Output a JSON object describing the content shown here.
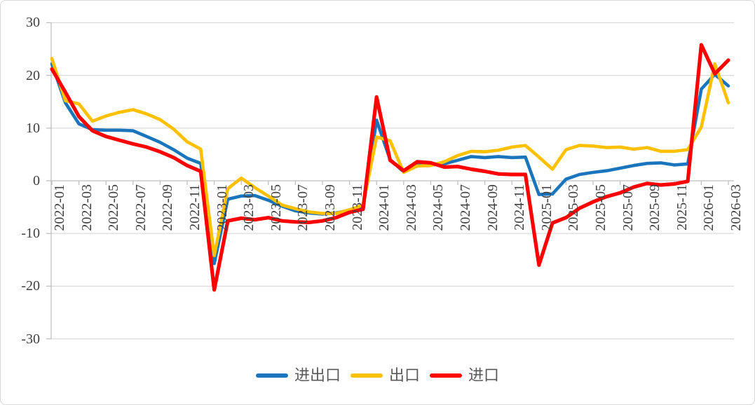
{
  "chart_data": {
    "type": "line",
    "title": "",
    "xlabel": "",
    "ylabel": "",
    "grid": true,
    "legend_position": "bottom",
    "ylim": [
      -30,
      30
    ],
    "y_ticks": [
      30,
      20,
      10,
      0,
      -10,
      -20,
      -30
    ],
    "y_tick_labels": [
      "30",
      "20",
      "10",
      "0",
      "-10",
      "-20",
      "-30"
    ],
    "x_tick_labels": [
      "2022-01",
      "2022-03",
      "2022-05",
      "2022-07",
      "2022-09",
      "2022-11",
      "2023-01",
      "2023-03",
      "2023-05",
      "2023-07",
      "2023-09",
      "2023-11",
      "2024-01",
      "2024-03",
      "2024-05",
      "2024-07",
      "2024-09",
      "2024-11",
      "2025-01",
      "2025-03",
      "2025-05",
      "2025-07",
      "2025-09",
      "2025-11",
      "2026-01",
      "2026-03"
    ],
    "x": [
      "2022-01",
      "2022-02",
      "2022-03",
      "2022-04",
      "2022-05",
      "2022-06",
      "2022-07",
      "2022-08",
      "2022-09",
      "2022-10",
      "2022-11",
      "2022-12",
      "2023-01",
      "2023-02",
      "2023-03",
      "2023-04",
      "2023-05",
      "2023-06",
      "2023-07",
      "2023-08",
      "2023-09",
      "2023-10",
      "2023-11",
      "2023-12",
      "2024-01",
      "2024-02",
      "2024-03",
      "2024-04",
      "2024-05",
      "2024-06",
      "2024-07",
      "2024-08",
      "2024-09",
      "2024-10",
      "2024-11",
      "2024-12",
      "2025-01",
      "2025-02",
      "2025-03",
      "2025-04",
      "2025-05",
      "2025-06",
      "2025-07",
      "2025-08",
      "2025-09",
      "2025-10",
      "2025-11",
      "2025-12",
      "2026-01",
      "2026-02",
      "2026-03"
    ],
    "series": [
      {
        "name": "进出口",
        "color": "#1B75BC",
        "values": [
          22.2,
          14.8,
          10.8,
          9.7,
          9.6,
          9.6,
          9.5,
          8.4,
          7.3,
          5.9,
          4.3,
          3.3,
          -15.7,
          -3.5,
          -2.9,
          -2.8,
          -3.7,
          -4.8,
          -5.7,
          -6.1,
          -6.3,
          -6.1,
          -5.6,
          -5.0,
          11.5,
          4.0,
          1.7,
          3.0,
          3.0,
          3.2,
          3.9,
          4.6,
          4.4,
          4.6,
          4.4,
          4.5,
          -2.6,
          -2.5,
          0.3,
          1.2,
          1.6,
          1.9,
          2.4,
          2.9,
          3.3,
          3.4,
          3.0,
          3.2,
          17.4,
          20.2,
          18.0
        ]
      },
      {
        "name": "出口",
        "color": "#FFC000",
        "values": [
          23.2,
          15.2,
          14.6,
          11.3,
          12.3,
          13.0,
          13.5,
          12.7,
          11.6,
          9.8,
          7.4,
          6.0,
          -14.2,
          -1.5,
          0.5,
          -1.3,
          -2.9,
          -4.6,
          -5.3,
          -5.9,
          -6.2,
          -6.2,
          -5.5,
          -4.6,
          8.3,
          7.6,
          1.6,
          2.8,
          2.9,
          3.6,
          4.8,
          5.6,
          5.5,
          5.8,
          6.4,
          6.7,
          4.5,
          2.2,
          5.9,
          6.7,
          6.6,
          6.3,
          6.4,
          6.0,
          6.3,
          5.6,
          5.6,
          5.9,
          10.2,
          22.2,
          14.8
        ]
      },
      {
        "name": "进口",
        "color": "#FE0000",
        "values": [
          21.2,
          16.8,
          12.2,
          9.5,
          8.4,
          7.7,
          7.0,
          6.4,
          5.5,
          4.4,
          2.9,
          1.8,
          -20.7,
          -7.6,
          -7.1,
          -7.4,
          -7.0,
          -7.6,
          -7.8,
          -7.9,
          -7.6,
          -7.0,
          -6.0,
          -5.4,
          15.9,
          3.9,
          1.9,
          3.6,
          3.4,
          2.6,
          2.7,
          2.2,
          1.8,
          1.3,
          1.2,
          1.2,
          -16.0,
          -8.0,
          -7.0,
          -5.2,
          -4.0,
          -3.0,
          -2.3,
          -1.2,
          -0.5,
          -0.8,
          -0.6,
          -0.1,
          25.8,
          20.3,
          22.9
        ]
      }
    ]
  },
  "style": {
    "gridline_color": "#D9D9D9",
    "axis_color": "#BFBFBF",
    "tick_label_color": "#404040",
    "legend_text_color": "#595959"
  }
}
